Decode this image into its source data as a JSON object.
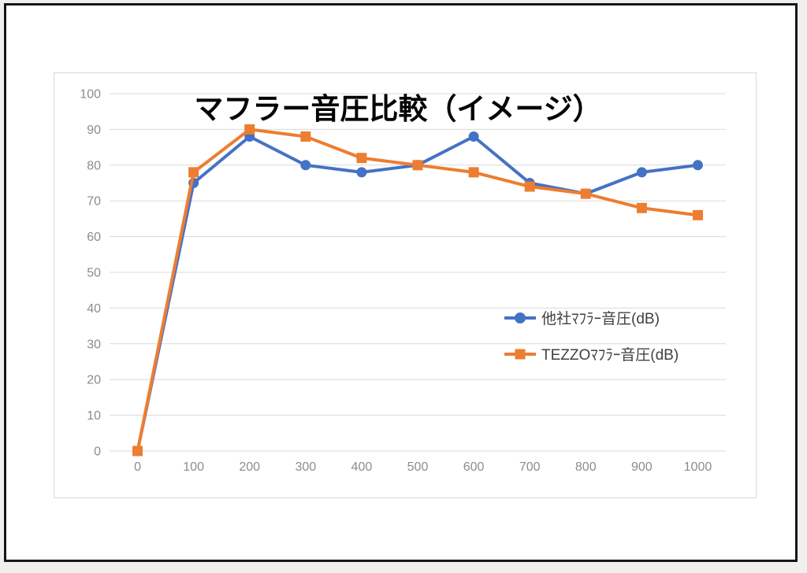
{
  "chart_data": {
    "type": "line",
    "title": "マフラー音圧比較（イメージ）",
    "xlabel": "",
    "ylabel": "",
    "categories": [
      "0",
      "100",
      "200",
      "300",
      "400",
      "500",
      "600",
      "700",
      "800",
      "900",
      "1000"
    ],
    "series": [
      {
        "name": "他社ﾏﾌﾗｰ音圧(dB)",
        "color": "#4472C4",
        "marker": "circle",
        "values": [
          0,
          75,
          88,
          80,
          78,
          80,
          88,
          75,
          72,
          78,
          80
        ]
      },
      {
        "name": "TEZZOﾏﾌﾗｰ音圧(dB)",
        "color": "#ED7D31",
        "marker": "square",
        "values": [
          0,
          78,
          90,
          88,
          82,
          80,
          78,
          74,
          72,
          68,
          66
        ]
      }
    ],
    "ylim": [
      0,
      100
    ],
    "ytick_step": 10,
    "grid": true,
    "legend_position": "inside-right-middle",
    "styles": {
      "gridline_color": "#d9d9d9",
      "axis_label_color": "#8c8c8c",
      "legend_text_color": "#404040",
      "title_color": "#000000"
    }
  }
}
